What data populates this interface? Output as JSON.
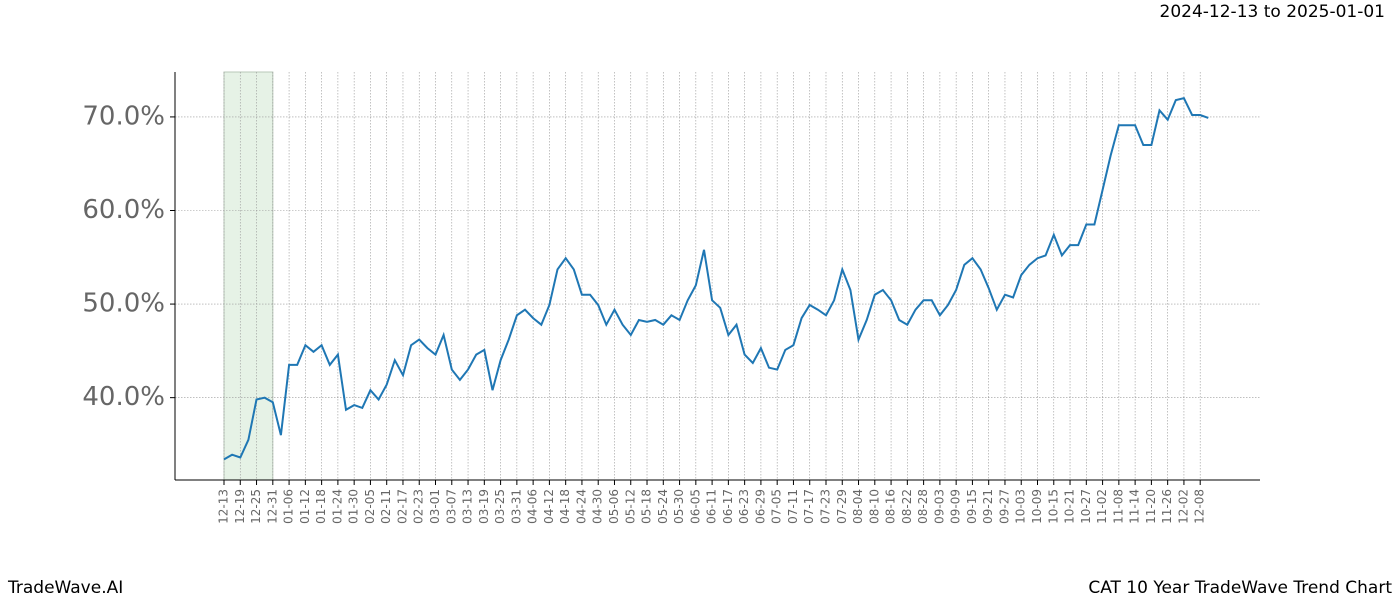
{
  "chart_data": {
    "type": "line",
    "title": "CAT 10 Year TradeWave Trend Chart",
    "subtitle": "2024-12-13 to 2025-01-01",
    "watermark": "TradeWave.AI",
    "categories": [
      "12-13",
      null,
      "12-19",
      null,
      "12-25",
      null,
      "12-31",
      null,
      "01-06",
      null,
      "01-12",
      null,
      "01-18",
      null,
      "01-24",
      null,
      "01-30",
      null,
      "02-05",
      null,
      "02-11",
      null,
      "02-17",
      null,
      "02-23",
      null,
      "03-01",
      null,
      "03-07",
      null,
      "03-13",
      null,
      "03-19",
      null,
      "03-25",
      null,
      "03-31",
      null,
      "04-06",
      null,
      "04-12",
      null,
      "04-18",
      null,
      "04-24",
      null,
      "04-30",
      null,
      "05-06",
      null,
      "05-12",
      null,
      "05-18",
      null,
      "05-24",
      null,
      "05-30",
      null,
      "06-05",
      null,
      "06-11",
      null,
      "06-17",
      null,
      "06-23",
      null,
      "06-29",
      null,
      "07-05",
      null,
      "07-11",
      null,
      "07-17",
      null,
      "07-23",
      null,
      "07-29",
      null,
      "08-04",
      null,
      "08-10",
      null,
      "08-16",
      null,
      "08-22",
      null,
      "08-28",
      null,
      "09-03",
      null,
      "09-09",
      null,
      "09-15",
      null,
      "09-21",
      null,
      "09-27",
      null,
      "10-03",
      null,
      "10-09",
      null,
      "10-15",
      null,
      "10-21",
      null,
      "10-27",
      null,
      "11-02",
      null,
      "11-08",
      null,
      "11-14",
      null,
      "11-20",
      null,
      "11-26",
      null,
      "12-02",
      null,
      "12-08",
      null
    ],
    "series": [
      {
        "color": "#1f77b4",
        "values": [
          33.4,
          33.9,
          33.6,
          35.5,
          39.8,
          40.0,
          39.5,
          36.0,
          43.5,
          43.5,
          45.6,
          44.9,
          45.6,
          43.5,
          44.6,
          38.7,
          39.2,
          38.9,
          40.8,
          39.8,
          41.4,
          44.0,
          42.4,
          45.6,
          46.2,
          45.3,
          44.6,
          46.7,
          43.0,
          41.9,
          43.0,
          44.6,
          45.1,
          40.8,
          44.0,
          46.2,
          48.8,
          49.4,
          48.5,
          47.8,
          49.9,
          53.7,
          54.9,
          53.7,
          51.0,
          51.0,
          49.9,
          47.8,
          49.4,
          47.8,
          46.7,
          48.3,
          48.1,
          48.3,
          47.8,
          48.8,
          48.3,
          50.4,
          52.0,
          55.8,
          50.4,
          49.6,
          46.7,
          47.8,
          44.6,
          43.7,
          45.3,
          43.2,
          43.0,
          45.1,
          45.6,
          48.5,
          49.9,
          49.4,
          48.8,
          50.4,
          53.7,
          51.5,
          46.2,
          48.3,
          51.0,
          51.5,
          50.4,
          48.3,
          47.8,
          49.4,
          50.4,
          50.4,
          48.8,
          49.9,
          51.5,
          54.2,
          54.9,
          53.7,
          51.7,
          49.4,
          51.0,
          50.7,
          53.1,
          54.2,
          54.9,
          55.2,
          57.4,
          55.2,
          56.3,
          56.3,
          58.5,
          58.5,
          62.2,
          65.9,
          69.1,
          69.1,
          69.1,
          67.0,
          67.0,
          70.7,
          69.7,
          71.8,
          72.0,
          70.2,
          70.2,
          69.9
        ]
      }
    ],
    "shaded_range": [
      "12-13",
      "12-31"
    ],
    "shade_color": "#e6f2e6",
    "ylim": [
      31.2,
      74.8
    ],
    "yticks": [
      {
        "value": 40,
        "label": "40.0%"
      },
      {
        "value": 50,
        "label": "50.0%"
      },
      {
        "value": 60,
        "label": "60.0%"
      },
      {
        "value": 70,
        "label": "70.0%"
      }
    ],
    "grid": true
  }
}
